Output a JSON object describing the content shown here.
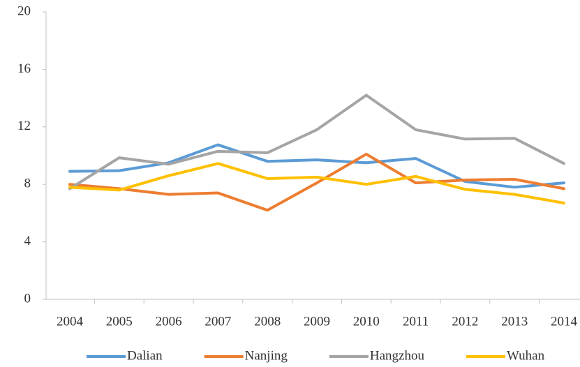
{
  "chart_data": {
    "type": "line",
    "categories": [
      "2004",
      "2005",
      "2006",
      "2007",
      "2008",
      "2009",
      "2010",
      "2011",
      "2012",
      "2013",
      "2014"
    ],
    "series": [
      {
        "name": "Dalian",
        "color": "#5b9bd5",
        "values": [
          8.9,
          8.95,
          9.5,
          10.75,
          9.6,
          9.7,
          9.5,
          9.8,
          8.2,
          7.8,
          8.1
        ]
      },
      {
        "name": "Nanjing",
        "color": "#ed7d31",
        "values": [
          8.0,
          7.7,
          7.3,
          7.4,
          6.2,
          8.1,
          10.1,
          8.1,
          8.3,
          8.35,
          7.7
        ]
      },
      {
        "name": "Hangzhou",
        "color": "#a5a5a5",
        "values": [
          7.7,
          9.85,
          9.4,
          10.3,
          10.2,
          11.8,
          14.2,
          11.8,
          11.15,
          11.2,
          9.45
        ]
      },
      {
        "name": "Wuhan",
        "color": "#ffc000",
        "values": [
          7.8,
          7.6,
          8.6,
          9.45,
          8.4,
          8.5,
          8.0,
          8.55,
          7.65,
          7.3,
          6.7
        ]
      }
    ],
    "ylim": [
      0,
      20
    ],
    "yticks": [
      0,
      4,
      8,
      12,
      16,
      20
    ],
    "grid": false,
    "legend": "bottom"
  }
}
